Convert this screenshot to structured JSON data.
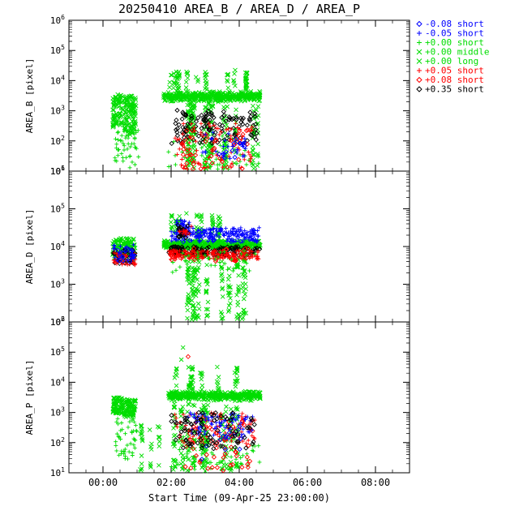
{
  "chart_data": {
    "type": "scatter",
    "title": "20250410 AREA_B / AREA_D / AREA_P",
    "xlabel": "Start Time (09-Apr-25 23:00:00)",
    "x_range_hours": [
      0,
      10
    ],
    "x_ticks": [
      {
        "t": 1,
        "label": "00:00"
      },
      {
        "t": 3,
        "label": "02:00"
      },
      {
        "t": 5,
        "label": "04:00"
      },
      {
        "t": 7,
        "label": "06:00"
      },
      {
        "t": 9,
        "label": "08:00"
      }
    ],
    "palette": {
      "blue": "#0000ff",
      "green": "#00dd00",
      "red": "#ff0000",
      "black": "#000000"
    },
    "legend": [
      {
        "marker": "diamond",
        "color": "blue",
        "label": "-0.08 short"
      },
      {
        "marker": "plus",
        "color": "blue",
        "label": "-0.05 short"
      },
      {
        "marker": "plus",
        "color": "green",
        "label": "+0.00 short"
      },
      {
        "marker": "x",
        "color": "green",
        "label": "+0.00 middle"
      },
      {
        "marker": "x",
        "color": "green",
        "label": "+0.00 long"
      },
      {
        "marker": "plus",
        "color": "red",
        "label": "+0.05 short"
      },
      {
        "marker": "diamond",
        "color": "red",
        "label": "+0.08 short"
      },
      {
        "marker": "diamond",
        "color": "black",
        "label": "+0.35 short"
      }
    ],
    "panels": [
      {
        "name": "AREA_B",
        "ylabel": "AREA_B [pixel]",
        "y_ticks": [
          1,
          2,
          3,
          4,
          5,
          6
        ],
        "clusters": [
          {
            "series": "+0.00 middle",
            "marker": "x",
            "color": "green",
            "t": [
              1.28,
              1.58
            ],
            "logy": [
              2.45,
              3.55
            ],
            "n": 80
          },
          {
            "series": "+0.00 middle",
            "marker": "x",
            "color": "green",
            "t": [
              1.62,
              1.97
            ],
            "logy": [
              2.2,
              3.5
            ],
            "n": 110
          },
          {
            "series": "+0.00 short",
            "marker": "plus",
            "color": "green",
            "t": [
              1.35,
              2.05
            ],
            "logy": [
              1.1,
              2.4
            ],
            "n": 50
          },
          {
            "series": "+0.00 middle",
            "marker": "x",
            "color": "green",
            "t": [
              2.78,
              5.62
            ],
            "logy": [
              3.28,
              3.66
            ],
            "n": 420,
            "dist": "band"
          },
          {
            "series": "+0.00 long",
            "marker": "x",
            "color": "green",
            "t": [
              2.85,
              5.5
            ],
            "logy": [
              3.66,
              4.3
            ],
            "n": 85,
            "columns": 12
          },
          {
            "series": "+0.00 long",
            "marker": "x",
            "color": "green",
            "t": [
              2.8,
              5.6
            ],
            "logy": [
              1.0,
              3.28
            ],
            "n": 230,
            "columns": 14
          },
          {
            "series": "+0.00 short",
            "marker": "plus",
            "color": "green",
            "t": [
              2.9,
              5.6
            ],
            "logy": [
              1.0,
              2.3
            ],
            "n": 60
          },
          {
            "series": "+0.35 short",
            "marker": "diamond",
            "color": "black",
            "t": [
              3.0,
              5.55
            ],
            "logy": [
              1.9,
              3.05
            ],
            "n": 130
          },
          {
            "series": "+0.05 short",
            "marker": "plus",
            "color": "red",
            "t": [
              3.1,
              5.45
            ],
            "logy": [
              1.0,
              2.6
            ],
            "n": 85
          },
          {
            "series": "+0.08 short",
            "marker": "diamond",
            "color": "red",
            "t": [
              3.3,
              5.4
            ],
            "logy": [
              1.0,
              2.4
            ],
            "n": 45
          },
          {
            "series": "-0.05 short",
            "marker": "plus",
            "color": "blue",
            "t": [
              3.9,
              5.3
            ],
            "logy": [
              1.4,
              2.3
            ],
            "n": 28
          },
          {
            "series": "-0.08 short",
            "marker": "diamond",
            "color": "blue",
            "t": [
              4.2,
              5.2
            ],
            "logy": [
              1.3,
              2.1
            ],
            "n": 12
          }
        ],
        "outliers": [
          {
            "marker": "x",
            "color": "green",
            "t": 4.88,
            "logy": 4.35
          },
          {
            "marker": "x",
            "color": "green",
            "t": 3.02,
            "logy": 4.18
          }
        ]
      },
      {
        "name": "AREA_D",
        "ylabel": "AREA_D [pixel]",
        "y_ticks": [
          2,
          3,
          4,
          5,
          6
        ],
        "clusters": [
          {
            "series": "+0.00 middle",
            "marker": "x",
            "color": "green",
            "t": [
              1.28,
              1.97
            ],
            "logy": [
              3.72,
              4.22
            ],
            "n": 110
          },
          {
            "series": "+0.00 short",
            "marker": "plus",
            "color": "green",
            "t": [
              1.3,
              1.95
            ],
            "logy": [
              3.55,
              4.0
            ],
            "n": 25
          },
          {
            "series": "+0.35 short",
            "marker": "diamond",
            "color": "black",
            "t": [
              1.3,
              1.95
            ],
            "logy": [
              3.55,
              3.92
            ],
            "n": 40
          },
          {
            "series": "+0.05 short",
            "marker": "plus",
            "color": "red",
            "t": [
              1.3,
              1.95
            ],
            "logy": [
              3.5,
              3.85
            ],
            "n": 40
          },
          {
            "series": "-0.05 short",
            "marker": "plus",
            "color": "blue",
            "t": [
              1.3,
              1.95
            ],
            "logy": [
              3.62,
              4.05
            ],
            "n": 30
          },
          {
            "series": "-0.08 short",
            "marker": "diamond",
            "color": "blue",
            "t": [
              1.35,
              1.9
            ],
            "logy": [
              3.6,
              4.0
            ],
            "n": 12
          },
          {
            "series": "+0.00 middle",
            "marker": "x",
            "color": "green",
            "t": [
              2.78,
              5.62
            ],
            "logy": [
              3.92,
              4.18
            ],
            "n": 420,
            "dist": "band"
          },
          {
            "series": "+0.00 long",
            "marker": "x",
            "color": "green",
            "t": [
              3.0,
              4.6
            ],
            "logy": [
              4.2,
              4.85
            ],
            "n": 75,
            "columns": 8
          },
          {
            "series": "+0.00 long",
            "marker": "x",
            "color": "green",
            "t": [
              3.3,
              5.55
            ],
            "logy": [
              2.0,
              3.9
            ],
            "n": 200,
            "columns": 10
          },
          {
            "series": "-0.05 short",
            "marker": "plus",
            "color": "blue",
            "t": [
              3.0,
              5.6
            ],
            "logy": [
              4.12,
              4.5
            ],
            "n": 150
          },
          {
            "series": "-0.05 short",
            "marker": "plus",
            "color": "blue",
            "t": [
              3.15,
              3.6
            ],
            "logy": [
              4.3,
              4.7
            ],
            "n": 35
          },
          {
            "series": "-0.08 short",
            "marker": "diamond",
            "color": "blue",
            "t": [
              3.1,
              5.5
            ],
            "logy": [
              4.12,
              4.45
            ],
            "n": 45
          },
          {
            "series": "+0.35 short",
            "marker": "diamond",
            "color": "black",
            "t": [
              2.9,
              5.6
            ],
            "logy": [
              3.76,
              4.0
            ],
            "n": 150
          },
          {
            "series": "+0.35 short",
            "marker": "diamond",
            "color": "black",
            "t": [
              3.2,
              3.6
            ],
            "logy": [
              4.2,
              4.6
            ],
            "n": 18
          },
          {
            "series": "+0.05 short",
            "marker": "plus",
            "color": "red",
            "t": [
              2.9,
              5.6
            ],
            "logy": [
              3.66,
              3.9
            ],
            "n": 150
          },
          {
            "series": "+0.05 short",
            "marker": "plus",
            "color": "red",
            "t": [
              3.1,
              3.6
            ],
            "logy": [
              4.3,
              4.55
            ],
            "n": 12
          },
          {
            "series": "+0.08 short",
            "marker": "diamond",
            "color": "red",
            "t": [
              3.0,
              5.3
            ],
            "logy": [
              3.6,
              3.95
            ],
            "n": 35
          },
          {
            "series": "+0.00 short",
            "marker": "plus",
            "color": "green",
            "t": [
              3.0,
              5.5
            ],
            "logy": [
              3.3,
              4.08
            ],
            "n": 45
          }
        ],
        "outliers": [
          {
            "marker": "x",
            "color": "green",
            "t": 3.45,
            "logy": 4.88
          }
        ]
      },
      {
        "name": "AREA_P",
        "ylabel": "AREA_P [pixel]",
        "y_ticks": [
          1,
          2,
          3,
          4,
          5,
          6
        ],
        "clusters": [
          {
            "series": "+0.00 middle",
            "marker": "x",
            "color": "green",
            "t": [
              1.28,
              1.58
            ],
            "logy": [
              2.95,
              3.5
            ],
            "n": 70
          },
          {
            "series": "+0.00 middle",
            "marker": "x",
            "color": "green",
            "t": [
              1.6,
              1.97
            ],
            "logy": [
              2.8,
              3.45
            ],
            "n": 90
          },
          {
            "series": "+0.00 short",
            "marker": "plus",
            "color": "green",
            "t": [
              1.35,
              2.0
            ],
            "logy": [
              1.4,
              2.8
            ],
            "n": 45
          },
          {
            "series": "+0.00 long",
            "marker": "x",
            "color": "green",
            "t": [
              2.0,
              2.7
            ],
            "logy": [
              1.0,
              2.6
            ],
            "n": 30,
            "columns": 4
          },
          {
            "series": "+0.00 middle",
            "marker": "x",
            "color": "green",
            "t": [
              2.9,
              5.62
            ],
            "logy": [
              3.38,
              3.72
            ],
            "n": 400,
            "dist": "band"
          },
          {
            "series": "+0.00 long",
            "marker": "x",
            "color": "green",
            "t": [
              3.0,
              5.4
            ],
            "logy": [
              3.72,
              4.55
            ],
            "n": 60,
            "columns": 8
          },
          {
            "series": "+0.00 long",
            "marker": "x",
            "color": "green",
            "t": [
              2.95,
              5.6
            ],
            "logy": [
              1.0,
              3.3
            ],
            "n": 220,
            "columns": 13
          },
          {
            "series": "+0.00 short",
            "marker": "plus",
            "color": "green",
            "t": [
              3.0,
              5.6
            ],
            "logy": [
              1.0,
              2.2
            ],
            "n": 55
          },
          {
            "series": "+0.05 short",
            "marker": "plus",
            "color": "red",
            "t": [
              3.1,
              5.5
            ],
            "logy": [
              1.95,
              3.0
            ],
            "n": 95
          },
          {
            "series": "+0.08 short",
            "marker": "diamond",
            "color": "red",
            "t": [
              3.2,
              5.45
            ],
            "logy": [
              1.0,
              2.75
            ],
            "n": 50
          },
          {
            "series": "-0.05 short",
            "marker": "plus",
            "color": "blue",
            "t": [
              3.5,
              5.4
            ],
            "logy": [
              2.25,
              3.0
            ],
            "n": 70
          },
          {
            "series": "-0.08 short",
            "marker": "diamond",
            "color": "blue",
            "t": [
              3.8,
              5.3
            ],
            "logy": [
              1.4,
              2.6
            ],
            "n": 16
          },
          {
            "series": "+0.35 short",
            "marker": "diamond",
            "color": "black",
            "t": [
              3.0,
              5.5
            ],
            "logy": [
              1.8,
              3.0
            ],
            "n": 85
          }
        ],
        "outliers": [
          {
            "marker": "x",
            "color": "green",
            "t": 3.35,
            "logy": 5.15
          },
          {
            "marker": "x",
            "color": "green",
            "t": 3.3,
            "logy": 4.75
          },
          {
            "marker": "diamond",
            "color": "red",
            "t": 3.5,
            "logy": 4.85
          },
          {
            "marker": "x",
            "color": "green",
            "t": 4.95,
            "logy": 4.05
          }
        ]
      }
    ]
  }
}
